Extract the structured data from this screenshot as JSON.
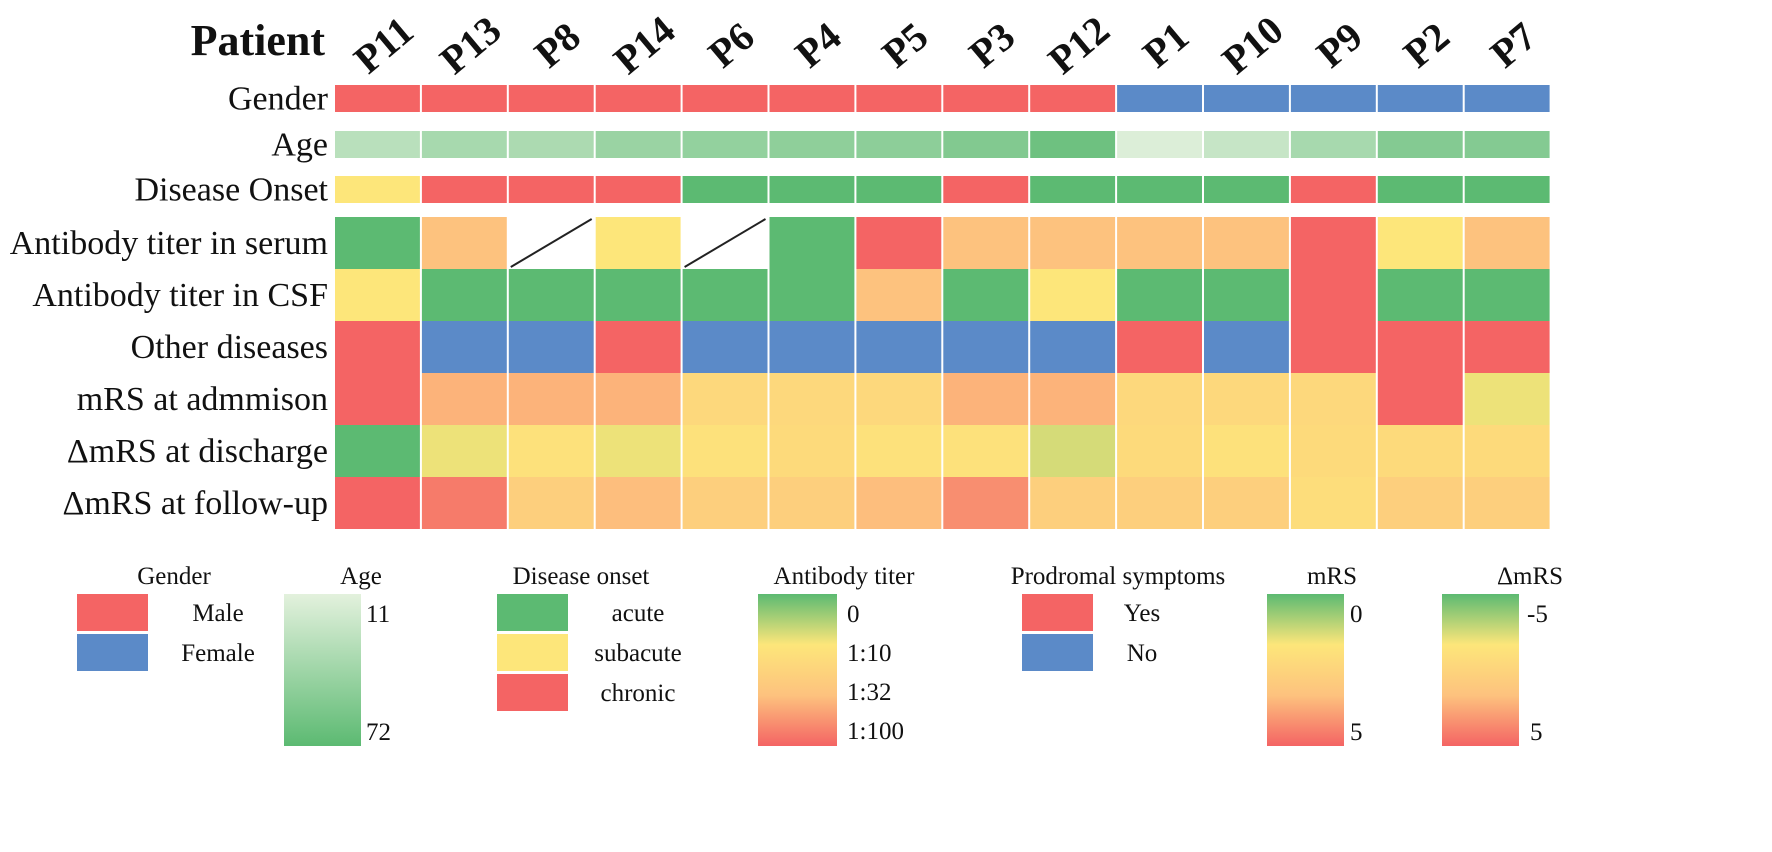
{
  "chart_data": {
    "type": "heatmap",
    "column_header": "Patient",
    "patients": [
      "P11",
      "P13",
      "P8",
      "P14",
      "P6",
      "P4",
      "P5",
      "P3",
      "P12",
      "P1",
      "P10",
      "P9",
      "P2",
      "P7"
    ],
    "rows": [
      {
        "label": "Gender",
        "kind": "category",
        "values": [
          "Male",
          "Male",
          "Male",
          "Male",
          "Male",
          "Male",
          "Male",
          "Male",
          "Male",
          "Female",
          "Female",
          "Female",
          "Female",
          "Female"
        ]
      },
      {
        "label": "Age",
        "kind": "age",
        "values": [
          30,
          38,
          36,
          44,
          47,
          49,
          50,
          55,
          64,
          14,
          24,
          38,
          54,
          54
        ]
      },
      {
        "label": "Disease Onset",
        "kind": "category",
        "values": [
          "subacute",
          "chronic",
          "chronic",
          "chronic",
          "acute",
          "acute",
          "acute",
          "chronic",
          "acute",
          "acute",
          "acute",
          "chronic",
          "acute",
          "acute"
        ]
      },
      {
        "label": "Antibody titer in serum",
        "kind": "titer",
        "values": [
          "0",
          "1:32",
          null,
          "1:10",
          null,
          "0",
          "1:100",
          "1:32",
          "1:32",
          "1:32",
          "1:32",
          "1:100",
          "1:10",
          "1:32"
        ]
      },
      {
        "label": "Antibody titer in CSF",
        "kind": "titer",
        "values": [
          "1:10",
          "0",
          "0",
          "0",
          "0",
          "0",
          "1:32",
          "0",
          "1:10",
          "0",
          "0",
          "1:100",
          "0",
          "0"
        ]
      },
      {
        "label": "Other diseases",
        "kind": "category",
        "values": [
          "Yes",
          "No",
          "No",
          "Yes",
          "No",
          "No",
          "No",
          "No",
          "No",
          "Yes",
          "No",
          "Yes",
          "Yes",
          "Yes"
        ]
      },
      {
        "label": "mRS at admmison",
        "kind": "mrs",
        "values": [
          5,
          3.6,
          3.6,
          3.6,
          2.3,
          2.3,
          2.3,
          3.6,
          3.6,
          2.3,
          2.3,
          2.3,
          5,
          1.5
        ]
      },
      {
        "label": "ΔmRS at discharge",
        "kind": "dmrs",
        "values": [
          -5,
          -2,
          -1.2,
          -2,
          -1.2,
          -0.6,
          -1.2,
          -1.2,
          -2.5,
          -0.6,
          -1.2,
          -0.6,
          -0.6,
          -0.6
        ]
      },
      {
        "label": "ΔmRS at follow-up",
        "kind": "dmrs",
        "values": [
          5,
          4.2,
          0.5,
          1.8,
          0.5,
          0.5,
          1.8,
          3.5,
          0.5,
          0.5,
          0.5,
          -0.8,
          0.5,
          0.5
        ]
      }
    ],
    "legends": {
      "gender": {
        "title": "Gender",
        "items": [
          {
            "label": "Male",
            "color": "#f46464"
          },
          {
            "label": "Female",
            "color": "#5b8ac8"
          }
        ]
      },
      "age": {
        "title": "Age",
        "min_label": "11",
        "max_label": "72",
        "min": 11,
        "max": 72,
        "colors": [
          "#e3f1dd",
          "#5cba72"
        ]
      },
      "onset": {
        "title": "Disease onset",
        "items": [
          {
            "label": "acute",
            "color": "#5cba72"
          },
          {
            "label": "subacute",
            "color": "#fde67a"
          },
          {
            "label": "chronic",
            "color": "#f46464"
          }
        ]
      },
      "titer": {
        "title": "Antibody titer",
        "ticks": [
          "0",
          "1:10",
          "1:32",
          "1:100"
        ],
        "colors": [
          "#5cba72",
          "#fde67a",
          "#fdc27e",
          "#f46464"
        ]
      },
      "prodromal": {
        "title": "Prodromal symptoms",
        "items": [
          {
            "label": "Yes",
            "color": "#f46464"
          },
          {
            "label": "No",
            "color": "#5b8ac8"
          }
        ]
      },
      "mrs": {
        "title": "mRS",
        "top_label": "0",
        "bottom_label": "5",
        "min": 0,
        "max": 5
      },
      "dmrs": {
        "title": "ΔmRS",
        "top_label": "-5",
        "bottom_label": "5",
        "min": -5,
        "max": 5
      }
    },
    "colors": {
      "category": {
        "Male": "#f46464",
        "Female": "#5b8ac8",
        "acute": "#5cba72",
        "subacute": "#fde67a",
        "chronic": "#f46464",
        "Yes": "#f46464",
        "No": "#5b8ac8"
      },
      "titer": {
        "0": "#5cba72",
        "1:10": "#fde67a",
        "1:32": "#fdc27e",
        "1:100": "#f46464"
      },
      "diverging": [
        "#5cba72",
        "#fde67a",
        "#fdc27e",
        "#f46464"
      ]
    }
  }
}
